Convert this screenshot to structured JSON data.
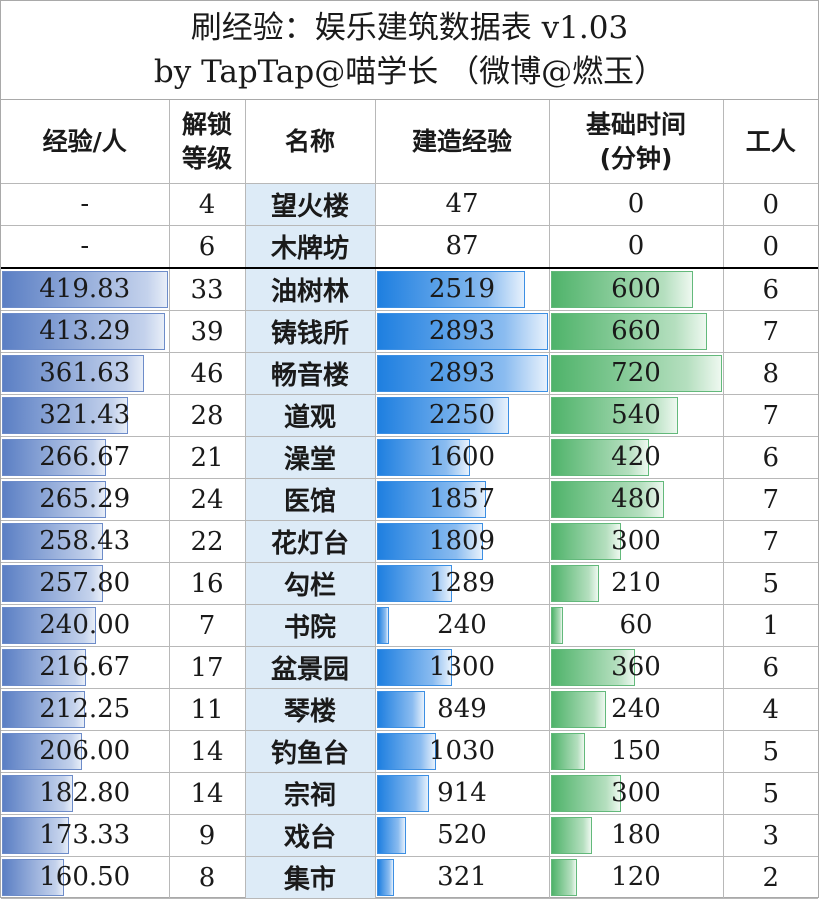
{
  "title": {
    "line1": "刷经验：娱乐建筑数据表 v1.03",
    "line2": "by TapTap@喵学长 （微博@燃玉）"
  },
  "headers": {
    "exp_per_worker": "经验/人",
    "unlock_level_line1": "解锁",
    "unlock_level_line2": "等级",
    "name": "名称",
    "build_exp": "建造经验",
    "base_time_line1": "基础时间",
    "base_time_line2": "(分钟)",
    "workers": "工人"
  },
  "rows": [
    {
      "exp": "-",
      "level": "4",
      "name": "望火楼",
      "build": "47",
      "time": "0",
      "workers": "0"
    },
    {
      "exp": "-",
      "level": "6",
      "name": "木牌坊",
      "build": "87",
      "time": "0",
      "workers": "0"
    },
    {
      "exp": "419.83",
      "level": "33",
      "name": "油树林",
      "build": "2519",
      "time": "600",
      "workers": "6"
    },
    {
      "exp": "413.29",
      "level": "39",
      "name": "铸钱所",
      "build": "2893",
      "time": "660",
      "workers": "7"
    },
    {
      "exp": "361.63",
      "level": "46",
      "name": "畅音楼",
      "build": "2893",
      "time": "720",
      "workers": "8"
    },
    {
      "exp": "321.43",
      "level": "28",
      "name": "道观",
      "build": "2250",
      "time": "540",
      "workers": "7"
    },
    {
      "exp": "266.67",
      "level": "21",
      "name": "澡堂",
      "build": "1600",
      "time": "420",
      "workers": "6"
    },
    {
      "exp": "265.29",
      "level": "24",
      "name": "医馆",
      "build": "1857",
      "time": "480",
      "workers": "7"
    },
    {
      "exp": "258.43",
      "level": "22",
      "name": "花灯台",
      "build": "1809",
      "time": "300",
      "workers": "7"
    },
    {
      "exp": "257.80",
      "level": "16",
      "name": "勾栏",
      "build": "1289",
      "time": "210",
      "workers": "5"
    },
    {
      "exp": "240.00",
      "level": "7",
      "name": "书院",
      "build": "240",
      "time": "60",
      "workers": "1"
    },
    {
      "exp": "216.67",
      "level": "17",
      "name": "盆景园",
      "build": "1300",
      "time": "360",
      "workers": "6"
    },
    {
      "exp": "212.25",
      "level": "11",
      "name": "琴楼",
      "build": "849",
      "time": "240",
      "workers": "4"
    },
    {
      "exp": "206.00",
      "level": "14",
      "name": "钓鱼台",
      "build": "1030",
      "time": "150",
      "workers": "5"
    },
    {
      "exp": "182.80",
      "level": "14",
      "name": "宗祠",
      "build": "914",
      "time": "300",
      "workers": "5"
    },
    {
      "exp": "173.33",
      "level": "9",
      "name": "戏台",
      "build": "520",
      "time": "180",
      "workers": "3"
    },
    {
      "exp": "160.50",
      "level": "8",
      "name": "集市",
      "build": "321",
      "time": "120",
      "workers": "2"
    }
  ],
  "bar_scale": {
    "exp_max": 419.83,
    "build_max": 2893,
    "time_max": 720
  },
  "colors": {
    "exp_bar": "#5b7fc4",
    "build_bar": "#1e7fe0",
    "time_bar": "#4fb36a",
    "name_fill": "#ddebf7"
  }
}
